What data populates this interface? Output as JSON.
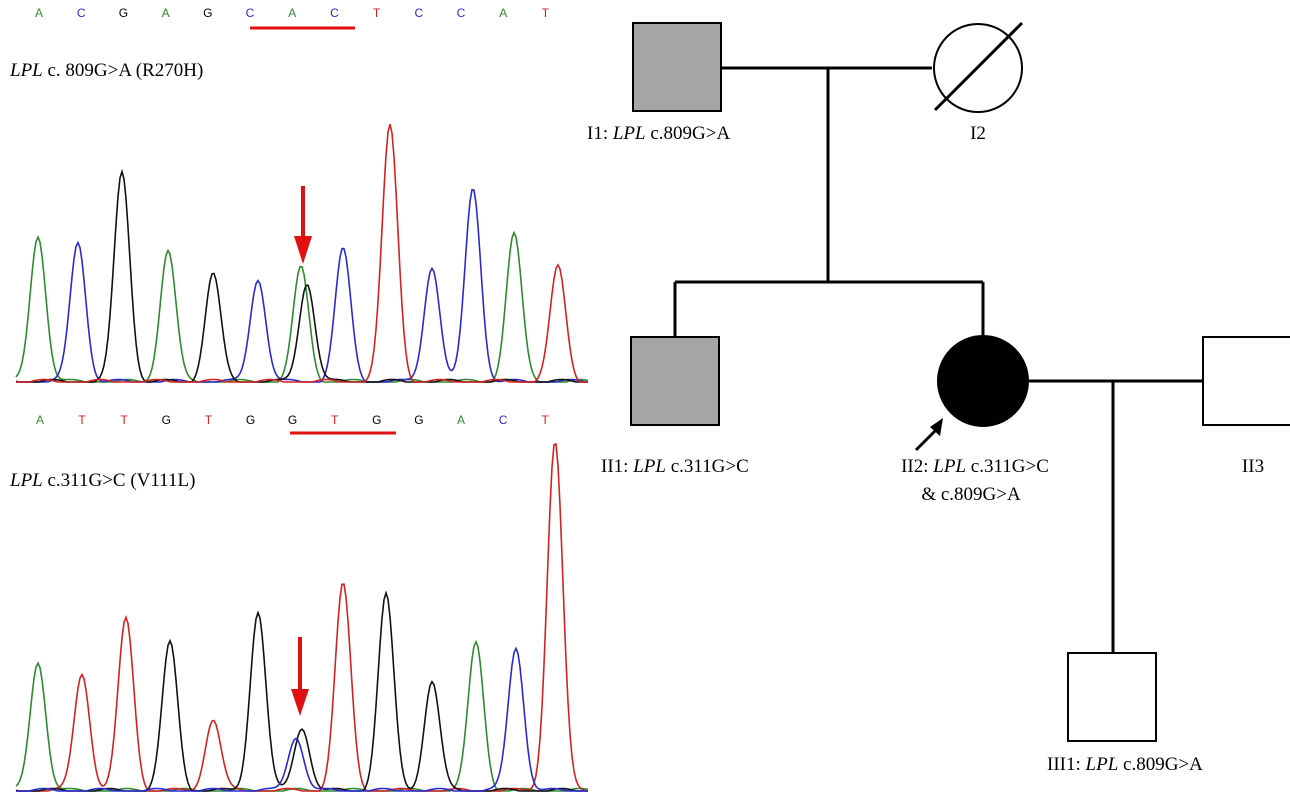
{
  "panel_a": {
    "bases": [
      {
        "letter": "A",
        "color": "#2e8b2e"
      },
      {
        "letter": "C",
        "color": "#2a2ad0"
      },
      {
        "letter": "G",
        "color": "#000000"
      },
      {
        "letter": "A",
        "color": "#2e8b2e"
      },
      {
        "letter": "G",
        "color": "#000000"
      },
      {
        "letter": "C",
        "color": "#2a2ad0"
      },
      {
        "letter": "A",
        "color": "#2e8b2e"
      },
      {
        "letter": "C",
        "color": "#2a2ad0"
      },
      {
        "letter": "T",
        "color": "#d22222"
      },
      {
        "letter": "C",
        "color": "#2a2ad0"
      },
      {
        "letter": "C",
        "color": "#2a2ad0"
      },
      {
        "letter": "A",
        "color": "#2e8b2e"
      },
      {
        "letter": "T",
        "color": "#d22222"
      }
    ],
    "label_gene": "LPL",
    "label_rest": " c. 809G>A (R270H)"
  },
  "panel_b": {
    "bases": [
      {
        "letter": "A",
        "color": "#2e8b2e"
      },
      {
        "letter": "T",
        "color": "#d22222"
      },
      {
        "letter": "T",
        "color": "#d22222"
      },
      {
        "letter": "G",
        "color": "#000000"
      },
      {
        "letter": "T",
        "color": "#d22222"
      },
      {
        "letter": "G",
        "color": "#000000"
      },
      {
        "letter": "G",
        "color": "#000000"
      },
      {
        "letter": "T",
        "color": "#d22222"
      },
      {
        "letter": "G",
        "color": "#000000"
      },
      {
        "letter": "G",
        "color": "#000000"
      },
      {
        "letter": "A",
        "color": "#2e8b2e"
      },
      {
        "letter": "C",
        "color": "#2a2ad0"
      },
      {
        "letter": "T",
        "color": "#d22222"
      }
    ],
    "label_gene": "LPL",
    "label_rest": " c.311G>C (V111L)"
  },
  "pedigree": {
    "I1": {
      "id": "I1: ",
      "gene": "LPL",
      "variant": " c.809G>A"
    },
    "I2": {
      "id": "I2"
    },
    "II1": {
      "id": "II1: ",
      "gene": "LPL",
      "variant": " c.311G>C"
    },
    "II2": {
      "id": "II2: ",
      "gene": "LPL",
      "variant": " c.311G>C",
      "line2": "& c.809G>A"
    },
    "II3": {
      "id": "II3"
    },
    "III1": {
      "id": "III1: ",
      "gene": "LPL",
      "variant": " c.809G>A"
    }
  },
  "colors": {
    "A": "#2e8b2e",
    "C": "#2a2ad0",
    "G": "#000000",
    "T": "#d22222",
    "marker": "#e01010",
    "carrier_fill": "#a6a6a6",
    "affected_fill": "#000000"
  }
}
